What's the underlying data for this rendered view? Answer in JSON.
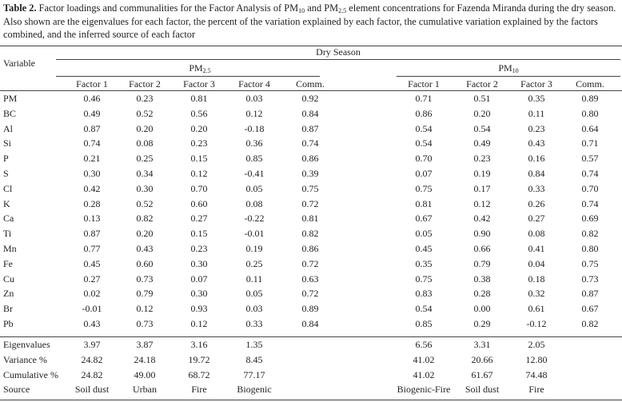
{
  "caption": {
    "label": "Table 2.",
    "text_1": " Factor loadings and communalities for the Factor Analysis of PM",
    "sub_1": "10",
    "text_2": " and PM",
    "sub_2": "2.5",
    "text_3": " element concentrations for Fazenda Miranda during the dry season. Also shown are the eigenvalues for each factor, the percent of the variation explained by each factor, the cumulative variation explained by the factors combined, and the inferred source of each factor"
  },
  "header": {
    "variable": "Variable",
    "season": "Dry Season",
    "pm25_base": "PM",
    "pm25_sub": "2.5",
    "pm10_base": "PM",
    "pm10_sub": "10",
    "pm25_cols": [
      "Factor 1",
      "Factor 2",
      "Factor 3",
      "Factor 4",
      "Comm."
    ],
    "pm10_cols": [
      "Factor 1",
      "Factor 2",
      "Factor 3",
      "Comm."
    ]
  },
  "rows": [
    {
      "label": "PM",
      "pm25": [
        "0.46",
        "0.23",
        "0.81",
        "0.03",
        "0.92"
      ],
      "pm10": [
        "0.71",
        "0.51",
        "0.35",
        "0.89"
      ]
    },
    {
      "label": "BC",
      "pm25": [
        "0.49",
        "0.52",
        "0.56",
        "0.12",
        "0.84"
      ],
      "pm10": [
        "0.86",
        "0.20",
        "0.11",
        "0.80"
      ]
    },
    {
      "label": "Al",
      "pm25": [
        "0.87",
        "0.20",
        "0.20",
        "-0.18",
        "0.87"
      ],
      "pm10": [
        "0.54",
        "0.54",
        "0.23",
        "0.64"
      ]
    },
    {
      "label": "Si",
      "pm25": [
        "0.74",
        "0.08",
        "0.23",
        "0.36",
        "0.74"
      ],
      "pm10": [
        "0.54",
        "0.49",
        "0.43",
        "0.71"
      ]
    },
    {
      "label": "P",
      "pm25": [
        "0.21",
        "0.25",
        "0.15",
        "0.85",
        "0.86"
      ],
      "pm10": [
        "0.70",
        "0.23",
        "0.16",
        "0.57"
      ]
    },
    {
      "label": "S",
      "pm25": [
        "0.30",
        "0.34",
        "0.12",
        "-0.41",
        "0.39"
      ],
      "pm10": [
        "0.07",
        "0.19",
        "0.84",
        "0.74"
      ]
    },
    {
      "label": "Cl",
      "pm25": [
        "0.42",
        "0.30",
        "0.70",
        "0.05",
        "0.75"
      ],
      "pm10": [
        "0.75",
        "0.17",
        "0.33",
        "0.70"
      ]
    },
    {
      "label": "K",
      "pm25": [
        "0.28",
        "0.52",
        "0.60",
        "0.08",
        "0.72"
      ],
      "pm10": [
        "0.81",
        "0.12",
        "0.26",
        "0.74"
      ]
    },
    {
      "label": "Ca",
      "pm25": [
        "0.13",
        "0.82",
        "0.27",
        "-0.22",
        "0.81"
      ],
      "pm10": [
        "0.67",
        "0.42",
        "0.27",
        "0.69"
      ]
    },
    {
      "label": "Ti",
      "pm25": [
        "0.87",
        "0.20",
        "0.15",
        "-0.01",
        "0.82"
      ],
      "pm10": [
        "0.05",
        "0.90",
        "0.08",
        "0.82"
      ]
    },
    {
      "label": "Mn",
      "pm25": [
        "0.77",
        "0.43",
        "0.23",
        "0.19",
        "0.86"
      ],
      "pm10": [
        "0.45",
        "0.66",
        "0.41",
        "0.80"
      ]
    },
    {
      "label": "Fe",
      "pm25": [
        "0.45",
        "0.60",
        "0.30",
        "0.25",
        "0.72"
      ],
      "pm10": [
        "0.35",
        "0.79",
        "0.04",
        "0.75"
      ]
    },
    {
      "label": "Cu",
      "pm25": [
        "0.27",
        "0.73",
        "0.07",
        "0.11",
        "0.63"
      ],
      "pm10": [
        "0.75",
        "0.38",
        "0.18",
        "0.73"
      ]
    },
    {
      "label": "Zn",
      "pm25": [
        "0.02",
        "0.79",
        "0.30",
        "0.05",
        "0.72"
      ],
      "pm10": [
        "0.83",
        "0.28",
        "0.32",
        "0.87"
      ]
    },
    {
      "label": "Br",
      "pm25": [
        "-0.01",
        "0.12",
        "0.93",
        "0.03",
        "0.89"
      ],
      "pm10": [
        "0.54",
        "0.00",
        "0.61",
        "0.67"
      ]
    },
    {
      "label": "Pb",
      "pm25": [
        "0.43",
        "0.73",
        "0.12",
        "0.33",
        "0.84"
      ],
      "pm10": [
        "0.85",
        "0.29",
        "-0.12",
        "0.82"
      ]
    }
  ],
  "summary": [
    {
      "label": "Eigenvalues",
      "pm25": [
        "3.97",
        "3.87",
        "3.16",
        "1.35"
      ],
      "pm10": [
        "6.56",
        "3.31",
        "2.05"
      ]
    },
    {
      "label": "Variance %",
      "pm25": [
        "24.82",
        "24.18",
        "19.72",
        "8.45"
      ],
      "pm10": [
        "41.02",
        "20.66",
        "12.80"
      ]
    },
    {
      "label": "Cumulative %",
      "pm25": [
        "24.82",
        "49.00",
        "68.72",
        "77.17"
      ],
      "pm10": [
        "41.02",
        "61.67",
        "74.48"
      ]
    },
    {
      "label": "Source",
      "pm25": [
        "Soil dust",
        "Urban",
        "Fire",
        "Biogenic"
      ],
      "pm10": [
        "Biogenic-Fire",
        "Soil dust",
        "Fire"
      ]
    }
  ]
}
